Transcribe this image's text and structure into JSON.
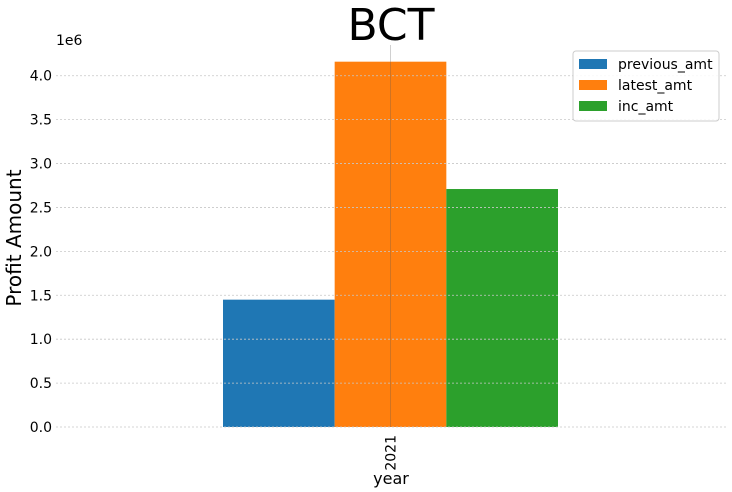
{
  "chart_data": {
    "type": "bar",
    "title": "BCT",
    "xlabel": "year",
    "ylabel": "Profit Amount",
    "y_offset_label": "1e6",
    "categories": [
      "2021"
    ],
    "series": [
      {
        "name": "previous_amt",
        "values": [
          1450000
        ],
        "color": "#1f77b4"
      },
      {
        "name": "latest_amt",
        "values": [
          4160000
        ],
        "color": "#ff7f0e"
      },
      {
        "name": "inc_amt",
        "values": [
          2710000
        ],
        "color": "#2ca02c"
      }
    ],
    "ylim": [
      0,
      4350000
    ],
    "yticks": [
      0,
      500000,
      1000000,
      1500000,
      2000000,
      2500000,
      3000000,
      3500000,
      4000000
    ],
    "ytick_labels": [
      "0.0",
      "0.5",
      "1.0",
      "1.5",
      "2.0",
      "2.5",
      "3.0",
      "3.5",
      "4.0"
    ],
    "xtick_rotation": "vertical",
    "grid": true,
    "legend_position": "top-right"
  }
}
